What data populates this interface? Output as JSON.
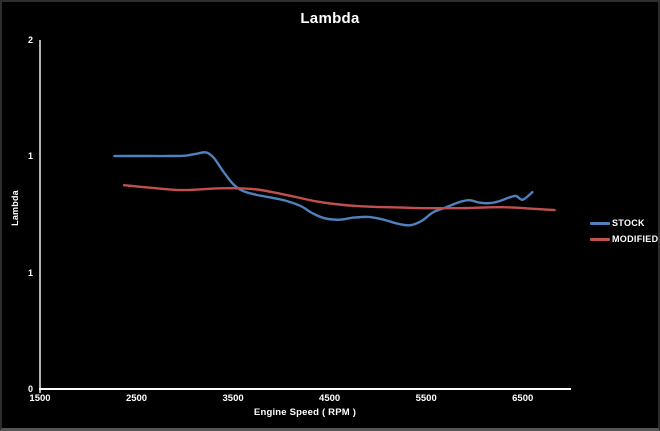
{
  "window": {
    "background": "#000000",
    "border_color": "#2e2e2e",
    "bottom_edge_color": "#565656"
  },
  "chart_data": {
    "type": "line",
    "title": "Lambda",
    "xlabel": "Engine Speed ( RPM )",
    "ylabel": "Lambda",
    "xlim": [
      1500,
      7000
    ],
    "ylim": [
      0,
      2
    ],
    "grid": false,
    "legend_position": "right",
    "axis_color": "#ffffff",
    "x_ticks": [
      {
        "value": 1500,
        "label": "1500"
      },
      {
        "value": 2500,
        "label": "2500"
      },
      {
        "value": 3500,
        "label": "3500"
      },
      {
        "value": 4500,
        "label": "4500"
      },
      {
        "value": 5500,
        "label": "5500"
      },
      {
        "value": 6500,
        "label": "6500"
      }
    ],
    "y_ticks": [
      {
        "value": 2,
        "label": "2"
      },
      {
        "value": 1.3333,
        "label": "1"
      },
      {
        "value": 0.6667,
        "label": "1"
      },
      {
        "value": 0,
        "label": "0"
      }
    ],
    "series": [
      {
        "name": "STOCK",
        "color": "#4f81bd",
        "points": [
          [
            2270,
            1.335
          ],
          [
            2450,
            1.335
          ],
          [
            2650,
            1.335
          ],
          [
            2850,
            1.335
          ],
          [
            3000,
            1.337
          ],
          [
            3120,
            1.348
          ],
          [
            3220,
            1.356
          ],
          [
            3300,
            1.325
          ],
          [
            3400,
            1.245
          ],
          [
            3500,
            1.175
          ],
          [
            3600,
            1.135
          ],
          [
            3750,
            1.112
          ],
          [
            3900,
            1.096
          ],
          [
            4050,
            1.078
          ],
          [
            4200,
            1.048
          ],
          [
            4330,
            1.005
          ],
          [
            4450,
            0.978
          ],
          [
            4600,
            0.97
          ],
          [
            4750,
            0.982
          ],
          [
            4900,
            0.986
          ],
          [
            5050,
            0.972
          ],
          [
            5200,
            0.948
          ],
          [
            5330,
            0.938
          ],
          [
            5450,
            0.962
          ],
          [
            5570,
            1.012
          ],
          [
            5700,
            1.04
          ],
          [
            5850,
            1.072
          ],
          [
            5950,
            1.082
          ],
          [
            6050,
            1.068
          ],
          [
            6150,
            1.065
          ],
          [
            6250,
            1.075
          ],
          [
            6350,
            1.095
          ],
          [
            6430,
            1.106
          ],
          [
            6500,
            1.085
          ],
          [
            6600,
            1.128
          ]
        ]
      },
      {
        "name": "MODIFIED",
        "color": "#c0504d",
        "points": [
          [
            2370,
            1.168
          ],
          [
            2550,
            1.158
          ],
          [
            2750,
            1.148
          ],
          [
            2950,
            1.14
          ],
          [
            3150,
            1.144
          ],
          [
            3350,
            1.15
          ],
          [
            3550,
            1.15
          ],
          [
            3750,
            1.143
          ],
          [
            3950,
            1.124
          ],
          [
            4150,
            1.1
          ],
          [
            4350,
            1.076
          ],
          [
            4550,
            1.06
          ],
          [
            4750,
            1.05
          ],
          [
            4950,
            1.044
          ],
          [
            5150,
            1.041
          ],
          [
            5350,
            1.038
          ],
          [
            5550,
            1.036
          ],
          [
            5750,
            1.036
          ],
          [
            5950,
            1.037
          ],
          [
            6150,
            1.041
          ],
          [
            6350,
            1.041
          ],
          [
            6550,
            1.035
          ],
          [
            6700,
            1.03
          ],
          [
            6830,
            1.025
          ]
        ]
      }
    ]
  }
}
